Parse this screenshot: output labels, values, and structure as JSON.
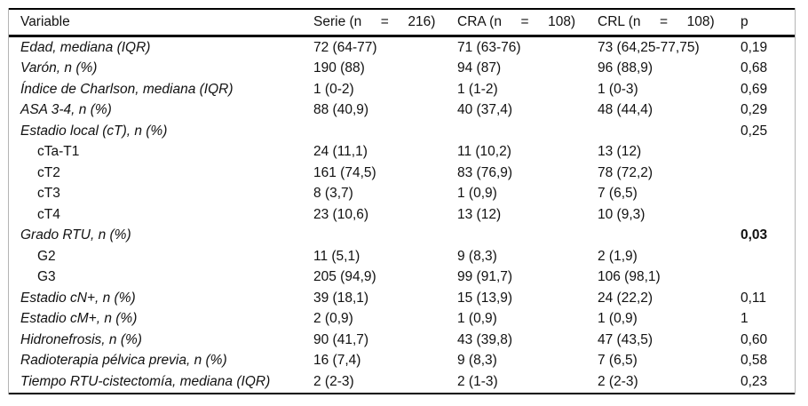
{
  "table": {
    "columns": [
      "Variable",
      "Serie (n     =     216)",
      "CRA (n     =     108)",
      "CRL (n     =     108)",
      "p"
    ],
    "rows": [
      {
        "variable": "Edad, mediana (IQR)",
        "style": "variable",
        "serie": "72 (64-77)",
        "cra": "71 (63-76)",
        "crl": "73 (64,25-77,75)",
        "p": "0,19",
        "p_bold": false
      },
      {
        "variable": "Varón, n (%)",
        "style": "variable",
        "serie": "190 (88)",
        "cra": "94 (87)",
        "crl": "96 (88,9)",
        "p": "0,68",
        "p_bold": false
      },
      {
        "variable": "Índice de Charlson, mediana (IQR)",
        "style": "variable",
        "serie": "1 (0-2)",
        "cra": "1 (1-2)",
        "crl": "1 (0-3)",
        "p": "0,69",
        "p_bold": false
      },
      {
        "variable": "ASA 3-4, n (%)",
        "style": "variable",
        "serie": "88 (40,9)",
        "cra": "40 (37,4)",
        "crl": "48 (44,4)",
        "p": "0,29",
        "p_bold": false
      },
      {
        "variable": "Estadio local (cT), n (%)",
        "style": "variable",
        "serie": "",
        "cra": "",
        "crl": "",
        "p": "0,25",
        "p_bold": false
      },
      {
        "variable": "cTa-T1",
        "style": "sub",
        "serie": "24 (11,1)",
        "cra": "11 (10,2)",
        "crl": "13 (12)",
        "p": "",
        "p_bold": false
      },
      {
        "variable": "cT2",
        "style": "sub",
        "serie": "161 (74,5)",
        "cra": "83 (76,9)",
        "crl": "78 (72,2)",
        "p": "",
        "p_bold": false
      },
      {
        "variable": "cT3",
        "style": "sub",
        "serie": "8 (3,7)",
        "cra": "1 (0,9)",
        "crl": "7 (6,5)",
        "p": "",
        "p_bold": false
      },
      {
        "variable": "cT4",
        "style": "sub",
        "serie": "23 (10,6)",
        "cra": "13 (12)",
        "crl": "10 (9,3)",
        "p": "",
        "p_bold": false
      },
      {
        "variable": "Grado RTU, n (%)",
        "style": "variable",
        "serie": "",
        "cra": "",
        "crl": "",
        "p": "0,03",
        "p_bold": true
      },
      {
        "variable": "G2",
        "style": "sub",
        "serie": "11 (5,1)",
        "cra": "9 (8,3)",
        "crl": "2 (1,9)",
        "p": "",
        "p_bold": false
      },
      {
        "variable": "G3",
        "style": "sub",
        "serie": "205 (94,9)",
        "cra": "99 (91,7)",
        "crl": "106 (98,1)",
        "p": "",
        "p_bold": false
      },
      {
        "variable": "Estadio cN+, n (%)",
        "style": "variable",
        "serie": "39 (18,1)",
        "cra": "15 (13,9)",
        "crl": "24 (22,2)",
        "p": "0,11",
        "p_bold": false
      },
      {
        "variable": "Estadio cM+, n (%)",
        "style": "variable",
        "serie": "2 (0,9)",
        "cra": "1 (0,9)",
        "crl": "1 (0,9)",
        "p": "1",
        "p_bold": false
      },
      {
        "variable": "Hidronefrosis, n (%)",
        "style": "variable",
        "serie": "90 (41,7)",
        "cra": "43 (39,8)",
        "crl": "47 (43,5)",
        "p": "0,60",
        "p_bold": false
      },
      {
        "variable": "Radioterapia pélvica previa, n (%)",
        "style": "variable",
        "serie": "16 (7,4)",
        "cra": "9 (8,3)",
        "crl": "7 (6,5)",
        "p": "0,58",
        "p_bold": false
      },
      {
        "variable": "Tiempo RTU-cistectomía, mediana (IQR)",
        "style": "variable",
        "serie": "2 (2-3)",
        "cra": "2 (1-3)",
        "crl": "2 (2-3)",
        "p": "0,23",
        "p_bold": false
      }
    ]
  }
}
